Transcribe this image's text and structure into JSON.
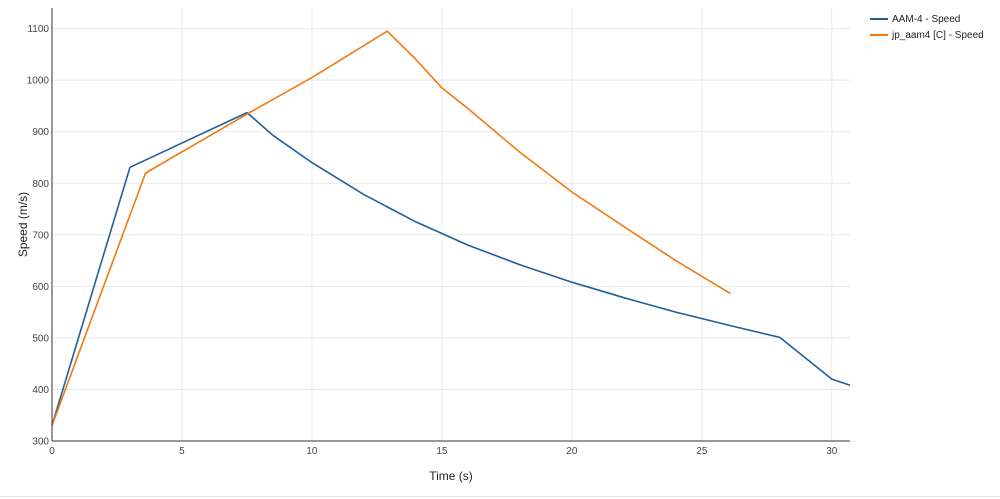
{
  "chart_data": {
    "type": "line",
    "xlabel": "Time (s)",
    "ylabel": "Speed (m/s)",
    "xlim": [
      0,
      30.7
    ],
    "ylim": [
      300,
      1140
    ],
    "x_ticks": [
      0,
      5,
      10,
      15,
      20,
      25,
      30
    ],
    "y_ticks": [
      300,
      400,
      500,
      600,
      700,
      800,
      900,
      1000,
      1100
    ],
    "grid": true,
    "legend_position": "top-right",
    "series": [
      {
        "name": "AAM-4 - Speed",
        "color": "#1f5f9a",
        "x": [
          0,
          3.0,
          7.5,
          8.5,
          10,
          12,
          14,
          16,
          18,
          20,
          22,
          24,
          26,
          28,
          30,
          30.7
        ],
        "y": [
          330,
          831,
          937,
          893,
          840,
          778,
          725,
          680,
          642,
          608,
          578,
          550,
          525,
          501,
          420,
          408
        ]
      },
      {
        "name": "jp_aam4 [C] - Speed",
        "color": "#f07b0f",
        "x": [
          0,
          3.6,
          7.6,
          10.0,
          12.9,
          14.0,
          15.0,
          16.0,
          18.0,
          20.0,
          22.0,
          24.0,
          26.1
        ],
        "y": [
          330,
          820,
          937,
          1005,
          1095,
          1040,
          985,
          945,
          860,
          783,
          716,
          650,
          586
        ]
      }
    ]
  },
  "legend": {
    "items": [
      {
        "label": "AAM-4 - Speed",
        "color": "#1f5f9a"
      },
      {
        "label": "jp_aam4 [C] - Speed",
        "color": "#f07b0f"
      }
    ]
  }
}
